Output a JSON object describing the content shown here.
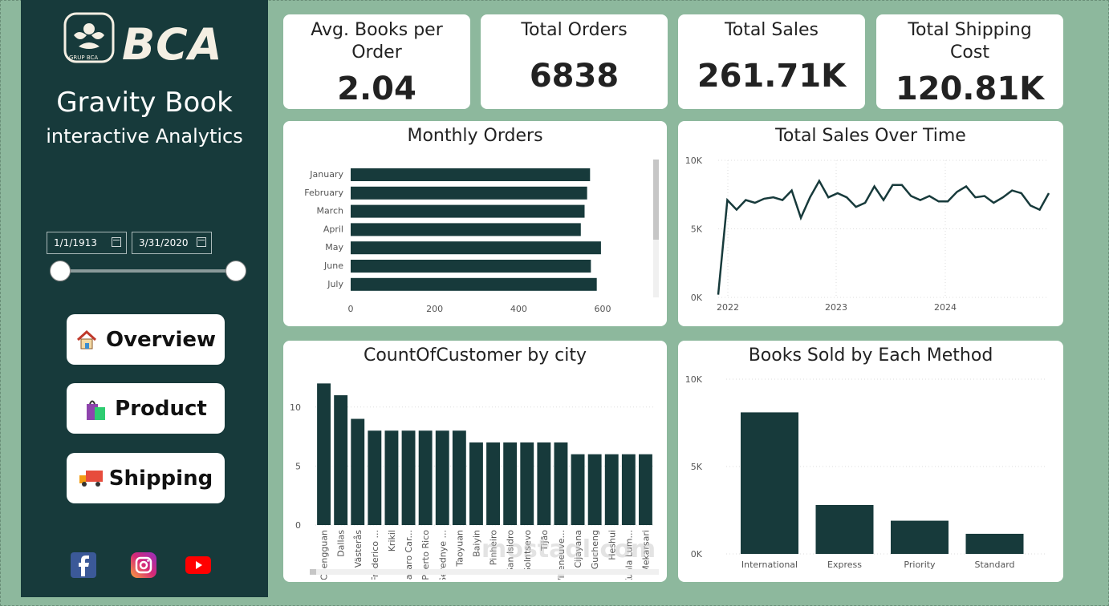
{
  "brand": {
    "name": "BCA",
    "sub": "GRUP BCA"
  },
  "sidebar": {
    "title": "Gravity Book",
    "subtitle": "interactive Analytics",
    "date_start": "1/1/1913",
    "date_end": "3/31/2020",
    "nav": [
      {
        "label": "Overview",
        "icon": "house-icon"
      },
      {
        "label": "Product",
        "icon": "shopping-bag-icon"
      },
      {
        "label": "Shipping",
        "icon": "truck-icon"
      }
    ],
    "social": [
      "facebook-icon",
      "instagram-icon",
      "youtube-icon"
    ]
  },
  "kpis": [
    {
      "label": "Avg. Books per Order",
      "value": "2.04"
    },
    {
      "label": "Total Orders",
      "value": "6838"
    },
    {
      "label": "Total Sales",
      "value": "261.71K"
    },
    {
      "label": "Total Shipping Cost",
      "value": "120.81K"
    }
  ],
  "colors": {
    "bar": "#173a3b",
    "background": "#8db89d",
    "sidebar": "#173a3b"
  },
  "chart_data": [
    {
      "type": "bar",
      "orientation": "horizontal",
      "title": "Monthly Orders",
      "categories": [
        "January",
        "February",
        "March",
        "April",
        "May",
        "June",
        "July"
      ],
      "values": [
        570,
        563,
        557,
        548,
        596,
        572,
        586
      ],
      "xlim": [
        0,
        700
      ],
      "xticks": [
        "0",
        "200",
        "400",
        "600"
      ]
    },
    {
      "type": "line",
      "title": "Total Sales Over Time",
      "x_ticks": [
        "2022",
        "2023",
        "2024"
      ],
      "y_ticks": [
        "0K",
        "5K",
        "10K"
      ],
      "ylim": [
        0,
        10000
      ],
      "values": [
        200,
        7100,
        6400,
        7100,
        6900,
        7200,
        7300,
        7100,
        7800,
        5800,
        7300,
        8500,
        7300,
        7600,
        7300,
        6600,
        6900,
        8100,
        7100,
        8200,
        8200,
        7400,
        7100,
        7400,
        7000,
        7000,
        7700,
        8100,
        7300,
        7400,
        6900,
        7300,
        7800,
        7600,
        6700,
        6400,
        7600
      ]
    },
    {
      "type": "bar",
      "title": "CountOfCustomer by city",
      "categories": [
        "Chengguan",
        "Dallas",
        "Västerås",
        "Frederico ...",
        "Krikil",
        "Lazaro Car...",
        "Puerto Rico",
        "Serednye ...",
        "Taoyuan",
        "Baiyin",
        "Pinheiro",
        "San Isidro",
        "Solntsevo",
        "Tijão",
        "Villeneuve...",
        "Cijayana",
        "Gucheng",
        "Heshui",
        "Kuala Lum...",
        "Mekarsari"
      ],
      "values": [
        12,
        11,
        9,
        8,
        8,
        8,
        8,
        8,
        8,
        7,
        7,
        7,
        7,
        7,
        7,
        6,
        6,
        6,
        6,
        6
      ],
      "ylim": [
        0,
        12.5
      ],
      "yticks": [
        "0",
        "5",
        "10"
      ]
    },
    {
      "type": "bar",
      "title": "Books Sold by Each Method",
      "categories": [
        "International",
        "Express",
        "Priority",
        "Standard"
      ],
      "values": [
        8100,
        2800,
        1900,
        1150
      ],
      "ylim": [
        0,
        10000
      ],
      "yticks": [
        "0K",
        "5K",
        "10K"
      ]
    }
  ],
  "watermark": "mostaql.com"
}
